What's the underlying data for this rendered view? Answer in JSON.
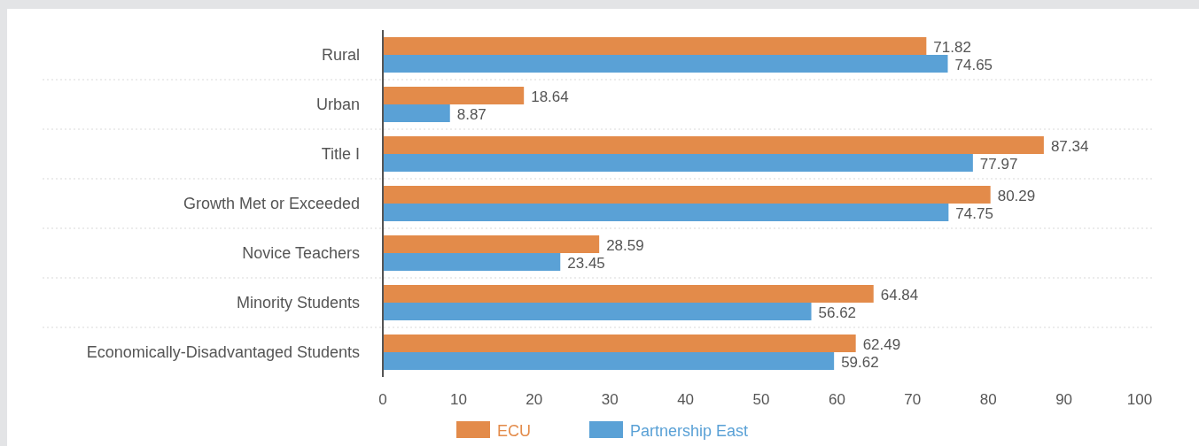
{
  "chart_data": {
    "type": "bar",
    "orientation": "horizontal",
    "categories": [
      "Rural",
      "Urban",
      "Title I",
      "Growth Met or Exceeded",
      "Novice Teachers",
      "Minority Students",
      "Economically-Disadvantaged Students"
    ],
    "series": [
      {
        "name": "ECU",
        "color": "#e38b4a",
        "values": [
          71.82,
          18.64,
          87.34,
          80.29,
          28.59,
          64.84,
          62.49
        ]
      },
      {
        "name": "Partnership East",
        "color": "#5aa1d6",
        "values": [
          74.65,
          8.87,
          77.97,
          74.75,
          23.45,
          56.62,
          59.62
        ]
      }
    ],
    "xlim": [
      0,
      100
    ],
    "xticks": [
      0,
      10,
      20,
      30,
      40,
      50,
      60,
      70,
      80,
      90,
      100
    ],
    "data_labels": true,
    "grid": "y",
    "legend": "bottom"
  }
}
